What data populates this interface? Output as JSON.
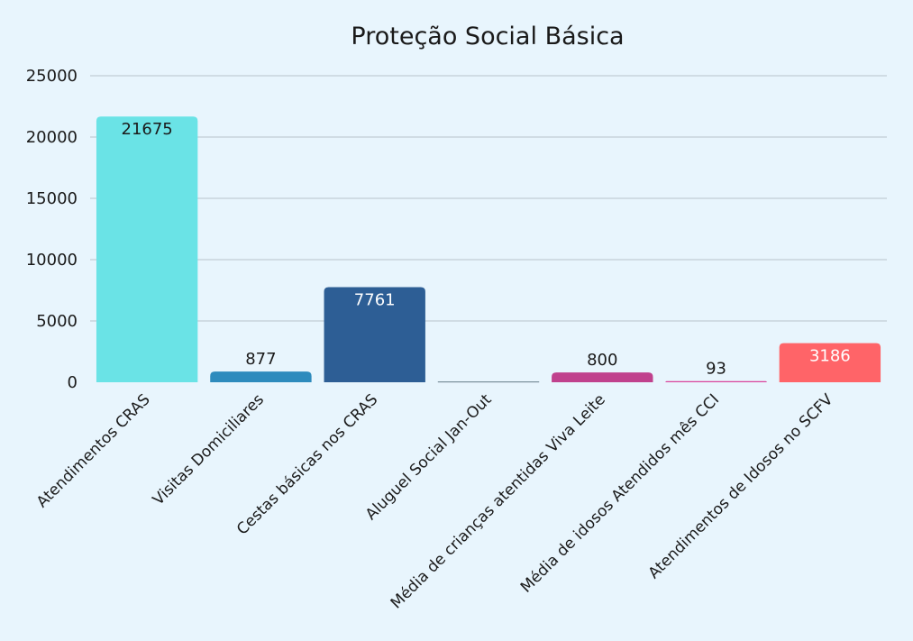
{
  "chart_data": {
    "type": "bar",
    "title": "Proteção Social Básica",
    "xlabel": "",
    "ylabel": "",
    "ylim": [
      0,
      25000
    ],
    "yticks": [
      0,
      5000,
      10000,
      15000,
      20000,
      25000
    ],
    "grid": true,
    "legend": "none",
    "categories": [
      "Atendimentos CRAS",
      "Visitas Domiciliares",
      "Cestas básicas nos CRAS",
      "Aluguel Social Jan-Out",
      "Média de crianças atentidas Viva Leite",
      "Média de idosos Atendidos mês CCI",
      "Atendimentos de Idosos no SCFV"
    ],
    "values": [
      21675,
      877,
      7761,
      0,
      800,
      93,
      3186
    ],
    "data_labels": [
      "21675",
      "877",
      "7761",
      "",
      "800",
      "93",
      "3186"
    ],
    "colors": [
      "#6ae3e6",
      "#2e8bbd",
      "#2d5e95",
      "#7a8f9a",
      "#c0418d",
      "#d9439b",
      "#ff6468"
    ],
    "label_colors": [
      "#1a1a1a",
      "#1a1a1a",
      "#ffffff",
      "#1a1a1a",
      "#1a1a1a",
      "#1a1a1a",
      "#ffffff"
    ]
  }
}
